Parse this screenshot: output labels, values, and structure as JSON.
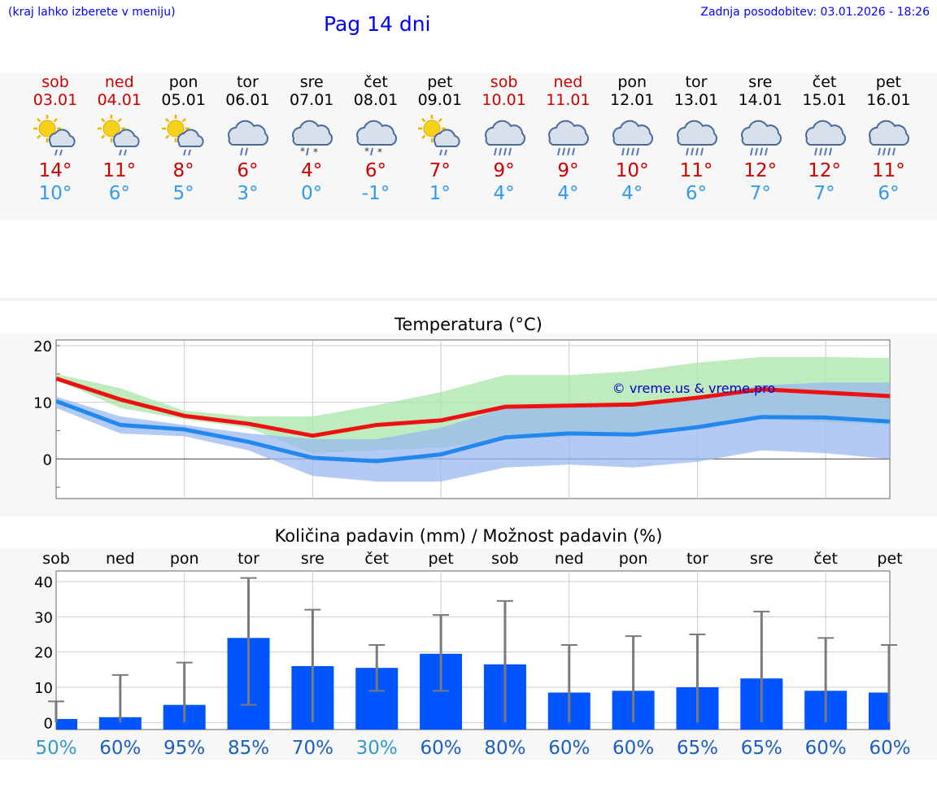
{
  "header": {
    "hint": "(kraj lahko izberete v meniju)",
    "title": "Pag 14 dni",
    "updated": "Zadnja posodobitev: 03.01.2026 - 18:26"
  },
  "colors": {
    "weekend": "#cc0000",
    "weekday": "#000000",
    "tmax": "#cc0000",
    "tmin": "#3399ee",
    "rain_bar": "#0055ff",
    "pct_low": "#3399cc",
    "pct_high": "#1b5fbf"
  },
  "days": [
    {
      "name": "sob",
      "date": "03.01",
      "weekend": true,
      "icon": "sun-cloud-rain-icon",
      "tmax": "14°",
      "tmin": "10°"
    },
    {
      "name": "ned",
      "date": "04.01",
      "weekend": true,
      "icon": "sun-cloud-rain-icon",
      "tmax": "11°",
      "tmin": "6°"
    },
    {
      "name": "pon",
      "date": "05.01",
      "weekend": false,
      "icon": "sun-cloud-rain-icon",
      "tmax": "8°",
      "tmin": "5°"
    },
    {
      "name": "tor",
      "date": "06.01",
      "weekend": false,
      "icon": "cloud-rain-icon",
      "tmax": "6°",
      "tmin": "3°"
    },
    {
      "name": "sre",
      "date": "07.01",
      "weekend": false,
      "icon": "cloud-sleet-icon",
      "tmax": "4°",
      "tmin": "0°"
    },
    {
      "name": "čet",
      "date": "08.01",
      "weekend": false,
      "icon": "cloud-sleet-icon",
      "tmax": "6°",
      "tmin": "-1°"
    },
    {
      "name": "pet",
      "date": "09.01",
      "weekend": false,
      "icon": "sun-cloud-rain-icon",
      "tmax": "7°",
      "tmin": "1°"
    },
    {
      "name": "sob",
      "date": "10.01",
      "weekend": true,
      "icon": "cloud-heavy-rain-icon",
      "tmax": "9°",
      "tmin": "4°"
    },
    {
      "name": "ned",
      "date": "11.01",
      "weekend": true,
      "icon": "cloud-heavy-rain-icon",
      "tmax": "9°",
      "tmin": "4°"
    },
    {
      "name": "pon",
      "date": "12.01",
      "weekend": false,
      "icon": "cloud-heavy-rain-icon",
      "tmax": "10°",
      "tmin": "4°"
    },
    {
      "name": "tor",
      "date": "13.01",
      "weekend": false,
      "icon": "cloud-heavy-rain-icon",
      "tmax": "11°",
      "tmin": "6°"
    },
    {
      "name": "sre",
      "date": "14.01",
      "weekend": false,
      "icon": "cloud-heavy-rain-icon",
      "tmax": "12°",
      "tmin": "7°"
    },
    {
      "name": "čet",
      "date": "15.01",
      "weekend": false,
      "icon": "cloud-heavy-rain-icon",
      "tmax": "12°",
      "tmin": "7°"
    },
    {
      "name": "pet",
      "date": "16.01",
      "weekend": false,
      "icon": "cloud-heavy-rain-icon",
      "tmax": "11°",
      "tmin": "6°"
    }
  ],
  "chart_data": [
    {
      "type": "line",
      "title": "Temperatura (°C)",
      "watermark": "© vreme.us & vreme.pro",
      "ylim": [
        -7,
        21
      ],
      "yticks": [
        0,
        10,
        20
      ],
      "x": [
        0,
        1,
        2,
        3,
        4,
        5,
        6,
        7,
        8,
        9,
        10,
        11,
        12,
        13
      ],
      "series": [
        {
          "name": "tmax",
          "color": "#ee1111",
          "values": [
            14.2,
            10.5,
            7.6,
            6.2,
            4.1,
            6.0,
            6.8,
            9.2,
            9.4,
            9.6,
            10.8,
            12.3,
            11.7,
            11.1
          ]
        },
        {
          "name": "tmin",
          "color": "#2288ee",
          "values": [
            10.2,
            6.0,
            5.2,
            3.0,
            0.2,
            -0.4,
            0.8,
            3.8,
            4.5,
            4.3,
            5.6,
            7.4,
            7.3,
            6.6
          ]
        }
      ],
      "bands": [
        {
          "name": "tmax-range",
          "color": "#a8e6a8",
          "upper": [
            15,
            12.5,
            8.5,
            7.5,
            7.5,
            9.5,
            11.8,
            14.8,
            14.8,
            15.5,
            17,
            18,
            18,
            17.8
          ],
          "lower": [
            14,
            9,
            7,
            5.5,
            1,
            1.5,
            2,
            3.5,
            4,
            4.5,
            5.5,
            7,
            6.5,
            6
          ]
        },
        {
          "name": "tmin-range",
          "color": "#9ab8f0",
          "upper": [
            11,
            7.5,
            6,
            4.5,
            3.5,
            3.5,
            5.5,
            9,
            9,
            9.5,
            11,
            13,
            13.5,
            13.5
          ],
          "lower": [
            9,
            4.5,
            4,
            1.5,
            -3,
            -4,
            -4,
            -1.5,
            -1,
            -1.5,
            -0.5,
            1.5,
            1,
            0
          ]
        }
      ]
    },
    {
      "type": "bar",
      "title": "Količina padavin (mm) / Možnost padavin (%)",
      "categories": [
        "sob",
        "ned",
        "pon",
        "tor",
        "sre",
        "čet",
        "pet",
        "sob",
        "ned",
        "pon",
        "tor",
        "sre",
        "čet",
        "pet"
      ],
      "ylim": [
        -2,
        43
      ],
      "yticks": [
        0,
        10,
        20,
        30,
        40
      ],
      "values": [
        1,
        1.5,
        5,
        24,
        16,
        15.5,
        19.5,
        16.5,
        8.5,
        9,
        10,
        12.5,
        9,
        8.5
      ],
      "error_high": [
        6,
        13.5,
        17,
        41,
        32,
        22,
        30.5,
        34.5,
        22,
        24.5,
        25,
        31.5,
        24,
        22
      ],
      "error_low": [
        0,
        0,
        0,
        5,
        0,
        9,
        9,
        0,
        0,
        0,
        0,
        0,
        0,
        0
      ],
      "chance": [
        "50%",
        "60%",
        "95%",
        "85%",
        "70%",
        "30%",
        "60%",
        "80%",
        "60%",
        "60%",
        "65%",
        "65%",
        "60%",
        "60%"
      ],
      "chance_low": [
        true,
        false,
        false,
        false,
        false,
        true,
        false,
        false,
        false,
        false,
        false,
        false,
        false,
        false
      ]
    }
  ]
}
